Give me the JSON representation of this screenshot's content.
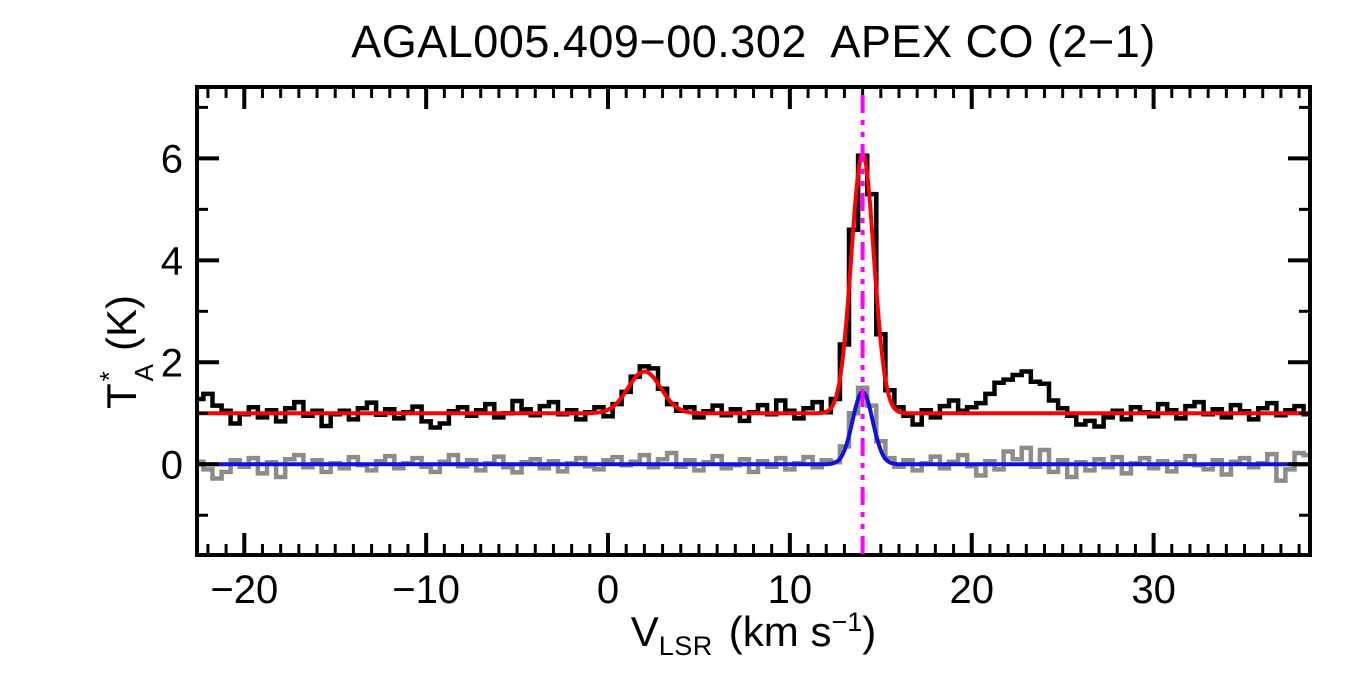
{
  "labels": {
    "title": "AGAL005.409−00.302  APEX CO (2−1)",
    "y_axis": {
      "main": "T",
      "sup": "*",
      "sub": "A",
      "unit": "(K)"
    },
    "x_axis": {
      "main": "V",
      "sub": "LSR",
      "unit_pre": "(km s",
      "unit_sup": "−1",
      "unit_post": ")"
    }
  },
  "colors": {
    "background": "#ffffff",
    "frame": "#000000",
    "observed_spectrum": "#000000",
    "residual_spectrum": "#8c8c8c",
    "gaussian_fit": "#ff0000",
    "residual_fit": "#1111dd",
    "velocity_marker": "#ff00ff"
  },
  "chart_data": {
    "type": "line",
    "title": "AGAL005.409−00.302  APEX CO (2−1)",
    "xlabel": "V_LSR (km s−1)",
    "ylabel": "T_A* (K)",
    "xlim": [
      -22.6,
      38.6
    ],
    "ylim": [
      -1.78,
      7.4
    ],
    "x_major_ticks": [
      -20,
      -10,
      0,
      10,
      20,
      30
    ],
    "x_tick_labels": [
      "−20",
      "−10",
      "0",
      "10",
      "20",
      "30"
    ],
    "x_minor_step": 1,
    "y_major_ticks": [
      0,
      2,
      4,
      6
    ],
    "y_tick_labels": [
      "0",
      "2",
      "4",
      "6"
    ],
    "y_minor_step": 1,
    "grid": false,
    "legend": false,
    "channels": {
      "x_start": -22.5,
      "dx": 0.5
    },
    "series": [
      {
        "name": "residual-spectrum",
        "style": "histogram",
        "color": "#8c8c8c",
        "stroke_width": 4.5,
        "values": [
          0.05,
          -0.1,
          -0.28,
          -0.15,
          0.08,
          -0.05,
          0.12,
          -0.18,
          0.04,
          -0.25,
          0.1,
          0.18,
          -0.06,
          0.08,
          -0.15,
          0.02,
          -0.08,
          0.14,
          -0.02,
          -0.12,
          0.06,
          0.16,
          -0.08,
          0.02,
          0.12,
          -0.05,
          -0.15,
          0.05,
          0.18,
          -0.04,
          0.08,
          -0.12,
          0.02,
          0.15,
          -0.06,
          -0.16,
          0.04,
          0.1,
          -0.08,
          0.06,
          -0.14,
          0.02,
          0.12,
          -0.04,
          -0.1,
          0.08,
          0.14,
          -0.02,
          0.05,
          0.18,
          -0.06,
          0.1,
          0.22,
          -0.05,
          0.08,
          -0.12,
          0.04,
          0.16,
          -0.08,
          -0.02,
          0.1,
          -0.15,
          0.06,
          -0.05,
          0.12,
          -0.1,
          0.02,
          0.14,
          -0.06,
          0.08,
          0.04,
          0.35,
          1.0,
          1.5,
          1.15,
          0.45,
          0.12,
          -0.05,
          0.08,
          -0.12,
          0.02,
          0.15,
          -0.08,
          0.05,
          0.18,
          -0.04,
          -0.22,
          0.06,
          -0.1,
          0.25,
          0.1,
          0.32,
          -0.05,
          0.28,
          -0.15,
          0.08,
          -0.25,
          0.04,
          -0.12,
          0.1,
          -0.06,
          0.14,
          -0.18,
          0.02,
          0.12,
          -0.08,
          0.06,
          -0.14,
          0.04,
          0.16,
          -0.02,
          -0.1,
          0.08,
          -0.2,
          0.05,
          0.12,
          -0.06,
          0.02,
          0.2,
          -0.32,
          -0.1,
          0.22,
          0.18
        ]
      },
      {
        "name": "residual-gaussian-fit",
        "style": "gaussian",
        "color": "#1111dd",
        "stroke_width": 4,
        "baseline": 0.0,
        "components": [
          {
            "center": 14.0,
            "amp": 1.42,
            "sigma": 0.55
          }
        ]
      },
      {
        "name": "observed-spectrum",
        "style": "histogram",
        "color": "#000000",
        "stroke_width": 4.5,
        "values": [
          1.28,
          1.38,
          1.15,
          1.05,
          0.8,
          0.98,
          1.12,
          0.92,
          1.06,
          0.84,
          1.1,
          1.22,
          0.95,
          1.05,
          0.75,
          0.98,
          1.05,
          0.88,
          1.1,
          1.21,
          0.97,
          1.08,
          0.9,
          1.02,
          1.13,
          0.84,
          0.72,
          0.8,
          1.04,
          1.12,
          0.95,
          1.06,
          1.18,
          0.92,
          1.0,
          1.24,
          1.08,
          0.96,
          1.14,
          1.22,
          0.98,
          1.06,
          0.88,
          1.02,
          1.12,
          0.94,
          1.18,
          1.42,
          1.72,
          1.92,
          1.88,
          1.48,
          1.18,
          1.05,
          1.12,
          0.92,
          1.04,
          1.15,
          0.96,
          1.08,
          0.85,
          1.02,
          1.16,
          0.98,
          1.25,
          1.05,
          0.9,
          1.1,
          1.22,
          1.02,
          1.28,
          2.35,
          4.6,
          6.05,
          5.3,
          2.55,
          1.45,
          1.12,
          0.95,
          0.78,
          1.06,
          0.92,
          1.14,
          1.25,
          1.05,
          1.12,
          1.2,
          1.38,
          1.6,
          1.66,
          1.75,
          1.82,
          1.62,
          1.58,
          1.25,
          1.1,
          0.95,
          0.78,
          0.85,
          0.74,
          0.92,
          1.05,
          0.88,
          1.12,
          1.02,
          0.94,
          1.18,
          1.06,
          0.9,
          1.14,
          1.22,
          0.98,
          1.08,
          0.92,
          1.16,
          1.04,
          0.88,
          1.1,
          1.2,
          0.96,
          1.06,
          1.14,
          0.98
        ]
      },
      {
        "name": "gaussian-fit",
        "style": "gaussian",
        "color": "#ff0000",
        "stroke_width": 4,
        "baseline": 1.0,
        "components": [
          {
            "center": 2.0,
            "amp": 0.82,
            "sigma": 0.9
          },
          {
            "center": 14.0,
            "amp": 5.1,
            "sigma": 0.62
          }
        ]
      }
    ],
    "marker_line": {
      "x": 14.0,
      "color": "#ff00ff",
      "style": "dash-dot",
      "meaning": "fitted LSR velocity"
    }
  }
}
